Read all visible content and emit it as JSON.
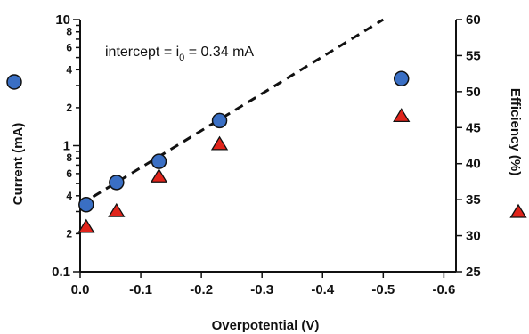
{
  "chart_data": {
    "type": "scatter",
    "xlabel": "Overpotential (V)",
    "ylabel_left": "Current (mA)",
    "ylabel_right": "Efficiency (%)",
    "x_range": [
      0.0,
      -0.62
    ],
    "x_ticks": [
      0.0,
      -0.1,
      -0.2,
      -0.3,
      -0.4,
      -0.5,
      -0.6
    ],
    "x_tick_labels": [
      "0.0",
      "-0.1",
      "-0.2",
      "-0.3",
      "-0.4",
      "-0.5",
      "-0.6"
    ],
    "y_left_scale": "log",
    "y_left_range": [
      0.1,
      10
    ],
    "y_left_major_labels": [
      "0.1",
      "1",
      "10"
    ],
    "y_left_minor_labels": [
      "2",
      "4",
      "6",
      "8",
      "2",
      "4",
      "6",
      "8"
    ],
    "y_right_range": [
      25,
      60
    ],
    "y_right_ticks": [
      25,
      30,
      35,
      40,
      45,
      50,
      55,
      60
    ],
    "y_right_tick_labels": [
      "25",
      "30",
      "35",
      "40",
      "45",
      "50",
      "55",
      "60"
    ],
    "annotation": {
      "prefix": "intercept = i",
      "subscript": "0",
      "suffix": " = 0.34 mA"
    },
    "series": [
      {
        "axis": "left",
        "marker": "circle",
        "color": "#3a6fc4",
        "x": [
          -0.01,
          -0.06,
          -0.13,
          -0.23,
          -0.53
        ],
        "y": [
          0.34,
          0.51,
          0.75,
          1.58,
          3.4
        ]
      },
      {
        "axis": "right",
        "marker": "triangle",
        "color": "#e0241b",
        "x": [
          -0.01,
          -0.06,
          -0.13,
          -0.23,
          -0.53
        ],
        "y": [
          31.2,
          33.4,
          38.2,
          42.7,
          46.6
        ]
      }
    ],
    "fit_line": {
      "axis": "left",
      "style": "dashed",
      "x": [
        0.0,
        -0.5
      ],
      "y": [
        0.34,
        10
      ]
    }
  }
}
